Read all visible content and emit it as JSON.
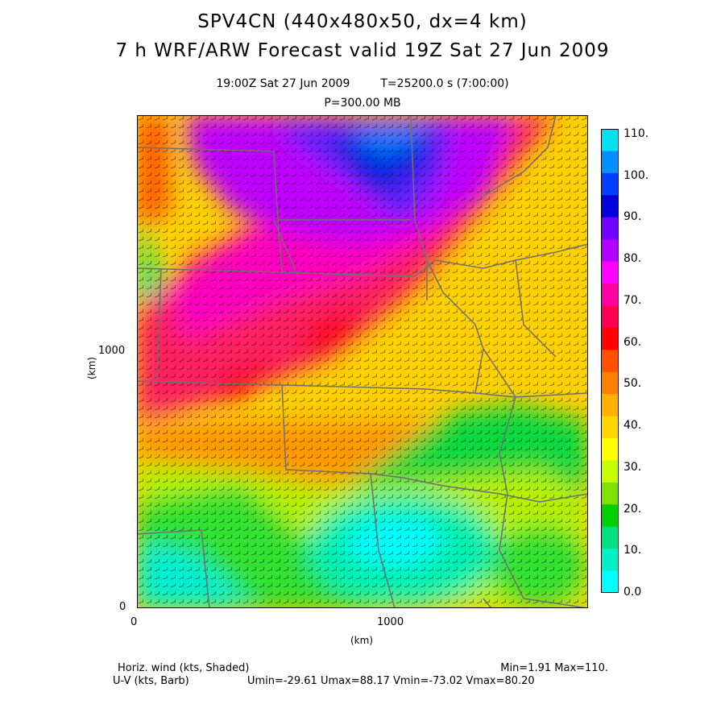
{
  "header": {
    "title_line1": "SPV4CN (440x480x50, dx=4 km)",
    "title_line2": "7 h WRF/ARW Forecast valid 19Z Sat 27 Jun 2009",
    "valid_time": "19:00Z Sat 27 Jun 2009",
    "time_info": "T=25200.0 s (7:00:00)",
    "pressure_level": "P=300.00 MB"
  },
  "map": {
    "x_axis_label": "(km)",
    "y_axis_label": "(km)",
    "x_ticks": [
      "0",
      "1000"
    ],
    "y_ticks": [
      "0",
      "1000"
    ]
  },
  "colorbar": {
    "labels": [
      "110.",
      "100.",
      "90.",
      "80.",
      "70.",
      "60.",
      "50.",
      "40.",
      "30.",
      "20.",
      "10.",
      "0.0"
    ],
    "colors": [
      "#00e0f0",
      "#0090ff",
      "#0040ff",
      "#0000d8",
      "#7000ff",
      "#b000ff",
      "#ff00ff",
      "#ff00a0",
      "#ff0050",
      "#ff0000",
      "#ff5000",
      "#ff8000",
      "#ffb000",
      "#ffd800",
      "#ffff00",
      "#c8ff00",
      "#80e000",
      "#00d000",
      "#00e080",
      "#00f0c8",
      "#00ffff"
    ]
  },
  "footer": {
    "field_shaded": "Horiz. wind (kts, Shaded)",
    "field_barb": "U-V (kts, Barb)",
    "minmax": "Min=1.91 Max=110.",
    "uv_stats": "Umin=-29.61 Umax=88.17 Vmin=-73.02 Vmax=80.20"
  }
}
